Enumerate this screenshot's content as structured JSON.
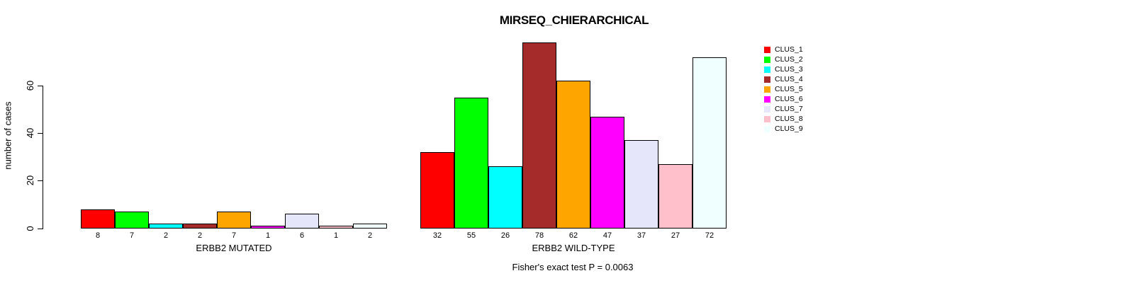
{
  "chart_data": {
    "type": "bar",
    "title": "MIRSEQ_CHIERARCHICAL",
    "ylabel": "number of cases",
    "yticks": [
      0,
      20,
      40,
      60
    ],
    "ylim": [
      0,
      78
    ],
    "grid": false,
    "legend_position": "right",
    "series_names": [
      "CLUS_1",
      "CLUS_2",
      "CLUS_3",
      "CLUS_4",
      "CLUS_5",
      "CLUS_6",
      "CLUS_7",
      "CLUS_8",
      "CLUS_9"
    ],
    "colors": [
      "#FF0000",
      "#00FF00",
      "#00FFFF",
      "#A52A2A",
      "#FFA500",
      "#FF00FF",
      "#E6E6FA",
      "#FFC0CB",
      "#F0FFFF"
    ],
    "groups": [
      {
        "label": "ERBB2 MUTATED",
        "values": [
          8,
          7,
          2,
          2,
          7,
          1,
          6,
          1,
          2
        ]
      },
      {
        "label": "ERBB2 WILD-TYPE",
        "values": [
          32,
          55,
          26,
          78,
          62,
          47,
          37,
          27,
          72
        ]
      }
    ],
    "annotation": "Fisher's exact test P = 0.0063"
  }
}
